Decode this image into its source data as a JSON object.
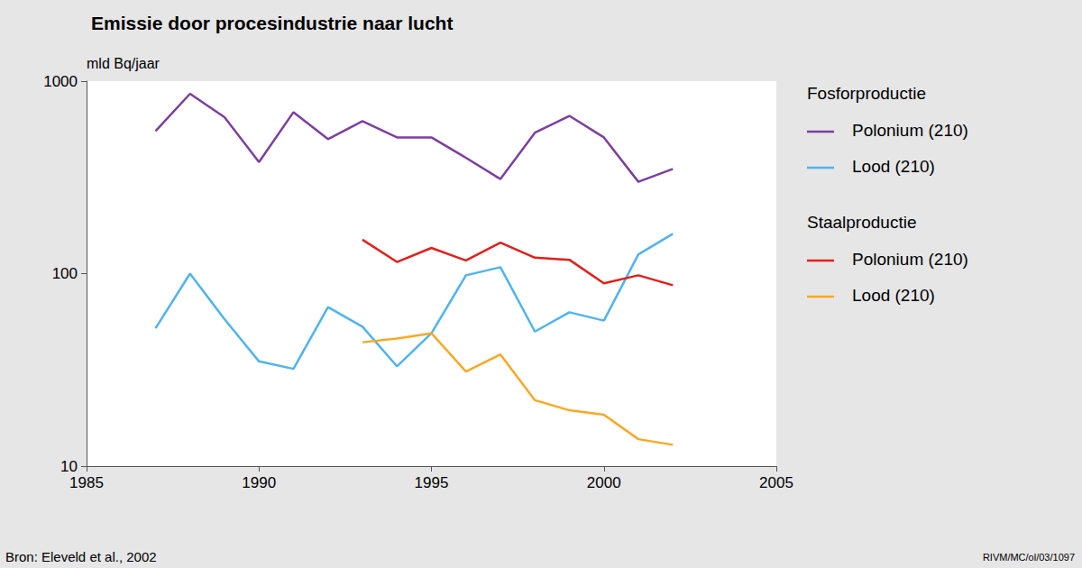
{
  "chart_data": {
    "type": "line",
    "title": "Emissie door procesindustrie naar lucht",
    "y_label": "mld Bq/jaar",
    "source": "Bron: Eleveld et al., 2002",
    "credit": "RIVM/MC/ol/03/1097",
    "x": [
      1987,
      1988,
      1989,
      1990,
      1991,
      1992,
      1993,
      1994,
      1995,
      1996,
      1997,
      1998,
      1999,
      2000,
      2001,
      2002
    ],
    "xlim": [
      1985,
      2005
    ],
    "xticks": [
      1985,
      1990,
      1995,
      2000,
      2005
    ],
    "ylim": [
      10,
      1000
    ],
    "yticks": [
      10,
      100,
      1000
    ],
    "log": "y",
    "grid": false,
    "legend": "right",
    "series": [
      {
        "name": "Polonium (210)",
        "group": "Fosforproductie",
        "color": "#7b3fa0",
        "values": [
          550,
          860,
          650,
          380,
          690,
          500,
          620,
          510,
          510,
          400,
          310,
          540,
          660,
          510,
          300,
          350
        ]
      },
      {
        "name": "Lood (210)",
        "group": "Fosforproductie",
        "color": "#4fb3f0",
        "values": [
          52,
          100,
          58,
          35,
          32,
          67,
          53,
          33,
          49,
          98,
          108,
          50,
          63,
          57,
          126,
          161
        ]
      },
      {
        "name": "Polonium (210)",
        "group": "Staalproductie",
        "color": "#e0201b",
        "values": [
          null,
          null,
          null,
          null,
          null,
          null,
          150,
          115,
          136,
          117,
          145,
          121,
          118,
          89,
          98,
          87
        ]
      },
      {
        "name": "Lood (210)",
        "group": "Staalproductie",
        "color": "#f9a825",
        "values": [
          null,
          null,
          null,
          null,
          null,
          null,
          44,
          46,
          49,
          31,
          38,
          22,
          19.5,
          18.5,
          13.8,
          12.9
        ]
      }
    ]
  }
}
